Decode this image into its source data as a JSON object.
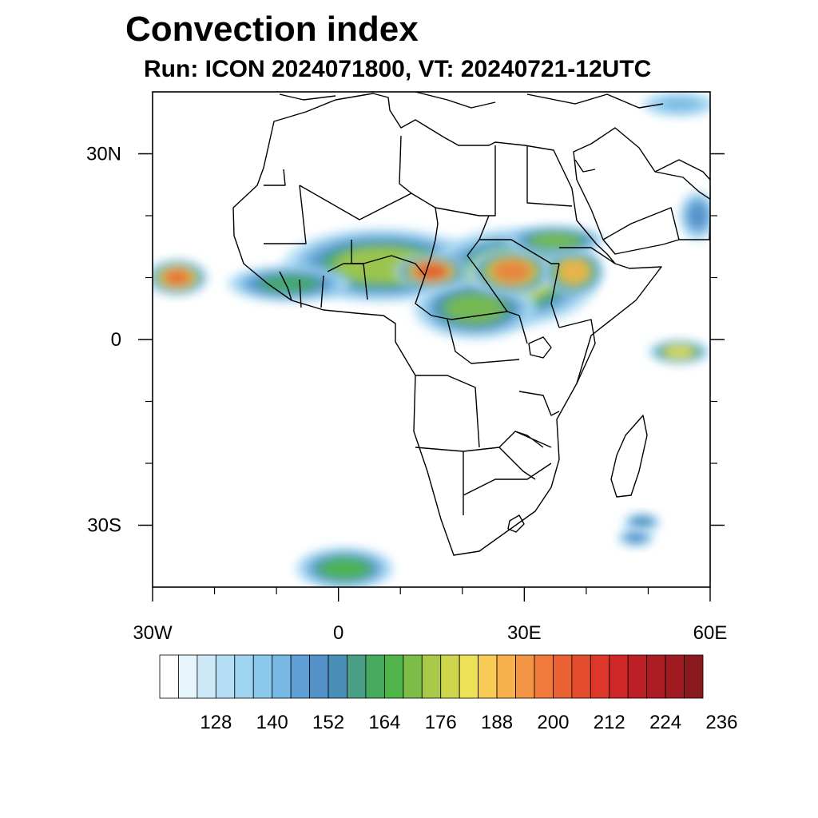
{
  "header": {
    "title": "Convection index",
    "subtitle": "Run: ICON 2024071800,  VT: 20240721-12UTC"
  },
  "map": {
    "projection": "cylindrical-equidistant",
    "lon_range": [
      -30,
      60
    ],
    "lat_range": [
      -40,
      40
    ],
    "lon_ticks": [
      {
        "value": -30,
        "label": "30W"
      },
      {
        "value": 0,
        "label": "0"
      },
      {
        "value": 30,
        "label": "30E"
      },
      {
        "value": 60,
        "label": "60E"
      }
    ],
    "lat_ticks": [
      {
        "value": 30,
        "label": "30N"
      },
      {
        "value": 0,
        "label": "0"
      },
      {
        "value": -30,
        "label": "30S"
      }
    ],
    "minor_lon_ticks": [
      -20,
      -10,
      10,
      20,
      40,
      50
    ],
    "minor_lat_ticks": [
      20,
      10,
      -10,
      -20
    ],
    "convection_cells": [
      {
        "lon": 7,
        "lat": 12,
        "rlon": 16,
        "rlat": 6,
        "level": 172
      },
      {
        "lon": 28,
        "lat": 10,
        "rlon": 14,
        "rlat": 8,
        "level": 176
      },
      {
        "lon": 22,
        "lat": 5,
        "rlon": 10,
        "rlat": 5,
        "level": 168
      },
      {
        "lon": 15,
        "lat": 11,
        "rlon": 6,
        "rlat": 3,
        "level": 205
      },
      {
        "lon": 28,
        "lat": 11,
        "rlon": 7,
        "rlat": 4,
        "level": 196
      },
      {
        "lon": 38,
        "lat": 11,
        "rlon": 5,
        "rlat": 4,
        "level": 190
      },
      {
        "lon": 35,
        "lat": 16,
        "rlon": 8,
        "rlat": 2.5,
        "level": 170
      },
      {
        "lon": -26,
        "lat": 10,
        "rlon": 5,
        "rlat": 3,
        "level": 200
      },
      {
        "lon": -8,
        "lat": 9,
        "rlon": 10,
        "rlat": 3,
        "level": 160
      },
      {
        "lon": 55,
        "lat": -2,
        "rlon": 5,
        "rlat": 2,
        "level": 182
      },
      {
        "lon": 1,
        "lat": -37,
        "rlon": 8,
        "rlat": 3.5,
        "level": 165
      },
      {
        "lon": 49,
        "lat": -29.5,
        "rlon": 3,
        "rlat": 1.5,
        "level": 155
      },
      {
        "lon": 48,
        "lat": -32,
        "rlon": 3,
        "rlat": 1.5,
        "level": 150
      },
      {
        "lon": 55,
        "lat": 38,
        "rlon": 6,
        "rlat": 2,
        "level": 140
      },
      {
        "lon": 58,
        "lat": 20,
        "rlon": 3,
        "rlat": 4,
        "level": 150
      }
    ]
  },
  "colorbar": {
    "levels": [
      116,
      120,
      124,
      128,
      132,
      136,
      140,
      144,
      148,
      152,
      156,
      160,
      164,
      168,
      172,
      176,
      180,
      184,
      188,
      192,
      196,
      200,
      204,
      208,
      212,
      216,
      220,
      224,
      228,
      232,
      236
    ],
    "colors": [
      "#ffffff",
      "#e6f4fc",
      "#cde9f8",
      "#b4def4",
      "#9fd4f0",
      "#8bc8ec",
      "#77b8e4",
      "#609fd6",
      "#5591c9",
      "#4a8fb5",
      "#4a9e86",
      "#47aa5e",
      "#4fb54a",
      "#7cbd48",
      "#a8c94a",
      "#d0d54e",
      "#ede157",
      "#f7cb55",
      "#f6b04d",
      "#f49445",
      "#ef7a3c",
      "#ea6234",
      "#e44c2e",
      "#dd362b",
      "#cf2628",
      "#bd1f26",
      "#ab1c24",
      "#9e1b22",
      "#8b1a1e"
    ],
    "labels": [
      "128",
      "140",
      "152",
      "164",
      "176",
      "188",
      "200",
      "212",
      "224",
      "236"
    ]
  }
}
